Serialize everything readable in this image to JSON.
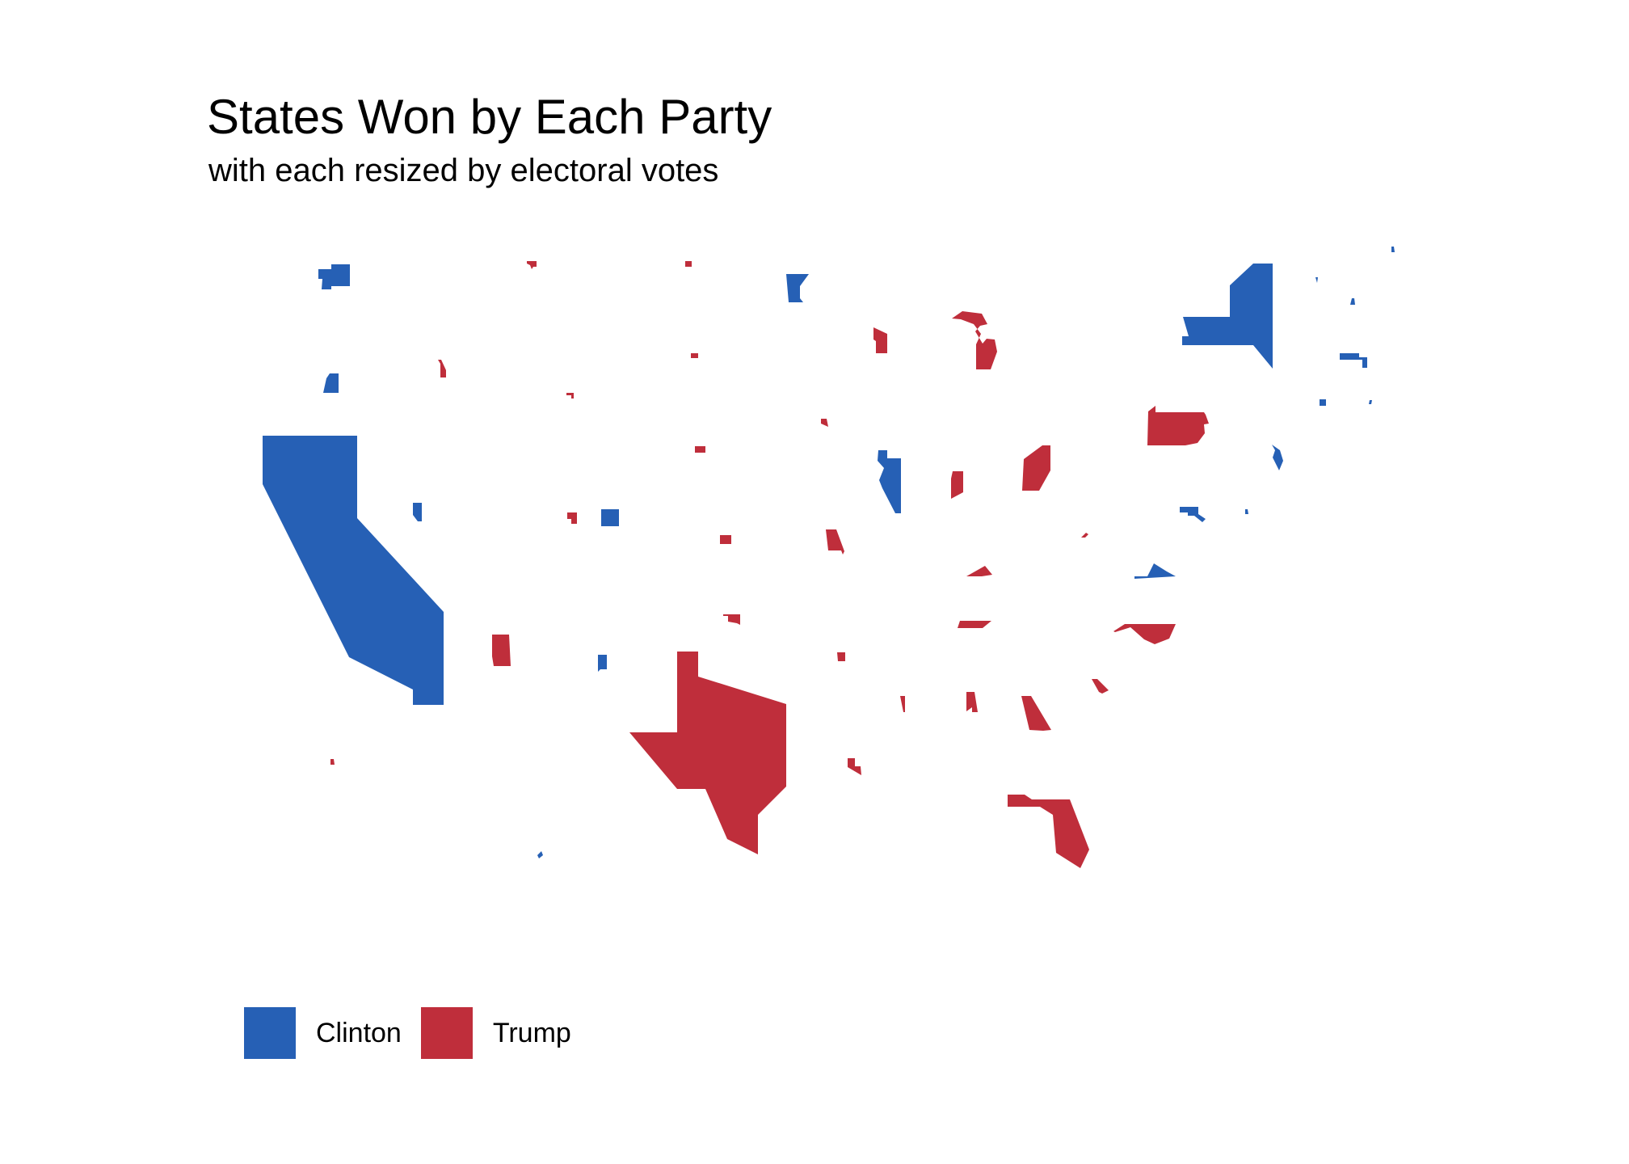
{
  "title": "States Won by Each Party",
  "subtitle": "with each resized by electoral votes",
  "legend": {
    "items": [
      {
        "label": "Clinton",
        "color": "#2660B5"
      },
      {
        "label": "Trump",
        "color": "#BF2E3B"
      }
    ]
  },
  "chart_data": {
    "type": "cartogram",
    "grid": false,
    "legend_placement": "bottom-left",
    "parties": {
      "Clinton": "#2660B5",
      "Trump": "#BF2E3B"
    },
    "states": [
      {
        "state": "Washington",
        "winner": "Clinton"
      },
      {
        "state": "Oregon",
        "winner": "Clinton"
      },
      {
        "state": "California",
        "winner": "Clinton"
      },
      {
        "state": "Nevada",
        "winner": "Clinton"
      },
      {
        "state": "Colorado",
        "winner": "Clinton"
      },
      {
        "state": "New Mexico",
        "winner": "Clinton"
      },
      {
        "state": "Minnesota",
        "winner": "Clinton"
      },
      {
        "state": "Illinois",
        "winner": "Clinton"
      },
      {
        "state": "New York",
        "winner": "Clinton"
      },
      {
        "state": "Vermont",
        "winner": "Clinton"
      },
      {
        "state": "New Hampshire",
        "winner": "Clinton"
      },
      {
        "state": "Maine",
        "winner": "Clinton"
      },
      {
        "state": "Massachusetts",
        "winner": "Clinton"
      },
      {
        "state": "Rhode Island",
        "winner": "Clinton"
      },
      {
        "state": "Connecticut",
        "winner": "Clinton"
      },
      {
        "state": "New Jersey",
        "winner": "Clinton"
      },
      {
        "state": "Delaware",
        "winner": "Clinton"
      },
      {
        "state": "Maryland",
        "winner": "Clinton"
      },
      {
        "state": "Virginia",
        "winner": "Clinton"
      },
      {
        "state": "Hawaii",
        "winner": "Clinton"
      },
      {
        "state": "Idaho",
        "winner": "Trump"
      },
      {
        "state": "Montana",
        "winner": "Trump"
      },
      {
        "state": "Wyoming",
        "winner": "Trump"
      },
      {
        "state": "Utah",
        "winner": "Trump"
      },
      {
        "state": "Arizona",
        "winner": "Trump"
      },
      {
        "state": "North Dakota",
        "winner": "Trump"
      },
      {
        "state": "South Dakota",
        "winner": "Trump"
      },
      {
        "state": "Nebraska",
        "winner": "Trump"
      },
      {
        "state": "Kansas",
        "winner": "Trump"
      },
      {
        "state": "Oklahoma",
        "winner": "Trump"
      },
      {
        "state": "Texas",
        "winner": "Trump"
      },
      {
        "state": "Iowa",
        "winner": "Trump"
      },
      {
        "state": "Missouri",
        "winner": "Trump"
      },
      {
        "state": "Arkansas",
        "winner": "Trump"
      },
      {
        "state": "Louisiana",
        "winner": "Trump"
      },
      {
        "state": "Wisconsin",
        "winner": "Trump"
      },
      {
        "state": "Michigan",
        "winner": "Trump"
      },
      {
        "state": "Indiana",
        "winner": "Trump"
      },
      {
        "state": "Ohio",
        "winner": "Trump"
      },
      {
        "state": "Kentucky",
        "winner": "Trump"
      },
      {
        "state": "Tennessee",
        "winner": "Trump"
      },
      {
        "state": "Mississippi",
        "winner": "Trump"
      },
      {
        "state": "Alabama",
        "winner": "Trump"
      },
      {
        "state": "Georgia",
        "winner": "Trump"
      },
      {
        "state": "Florida",
        "winner": "Trump"
      },
      {
        "state": "South Carolina",
        "winner": "Trump"
      },
      {
        "state": "North Carolina",
        "winner": "Trump"
      },
      {
        "state": "West Virginia",
        "winner": "Trump"
      },
      {
        "state": "Pennsylvania",
        "winner": "Trump"
      },
      {
        "state": "Alaska",
        "winner": "Trump"
      }
    ]
  }
}
